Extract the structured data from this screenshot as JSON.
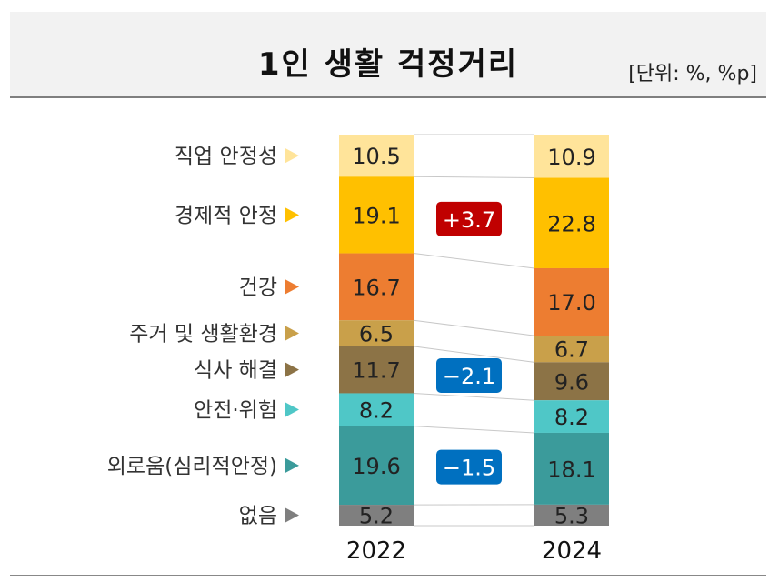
{
  "header": {
    "title": "1인 생활 걱정거리",
    "unit": "[단위: %, %p]"
  },
  "chart_data": {
    "type": "bar",
    "stacked": true,
    "title": "1인 생활 걱정거리",
    "x": [
      "2022",
      "2024"
    ],
    "series": [
      {
        "name": "직업 안정성",
        "values": [
          10.5,
          10.9
        ],
        "color": "#ffe49a"
      },
      {
        "name": "경제적 안정",
        "values": [
          19.1,
          22.8
        ],
        "color": "#ffc000"
      },
      {
        "name": "건강",
        "values": [
          16.7,
          17.0
        ],
        "color": "#ed7d31"
      },
      {
        "name": "주거 및 생활환경",
        "values": [
          6.5,
          6.7
        ],
        "color": "#c9a04a"
      },
      {
        "name": "식사 해결",
        "values": [
          11.7,
          9.6
        ],
        "color": "#8c7346"
      },
      {
        "name": "안전·위험",
        "values": [
          8.2,
          8.2
        ],
        "color": "#4fc7c7"
      },
      {
        "name": "외로움(심리적안정)",
        "values": [
          19.6,
          18.1
        ],
        "color": "#3b9b9b"
      },
      {
        "name": "없음",
        "values": [
          5.2,
          5.3
        ],
        "color": "#7f7f7f"
      }
    ],
    "changes": [
      {
        "series": "경제적 안정",
        "label": "+3.7",
        "color": "#c00000"
      },
      {
        "series": "식사 해결",
        "label": "−2.1",
        "color": "#0070c0"
      },
      {
        "series": "외로움(심리적안정)",
        "label": "−1.5",
        "color": "#0070c0"
      }
    ]
  }
}
